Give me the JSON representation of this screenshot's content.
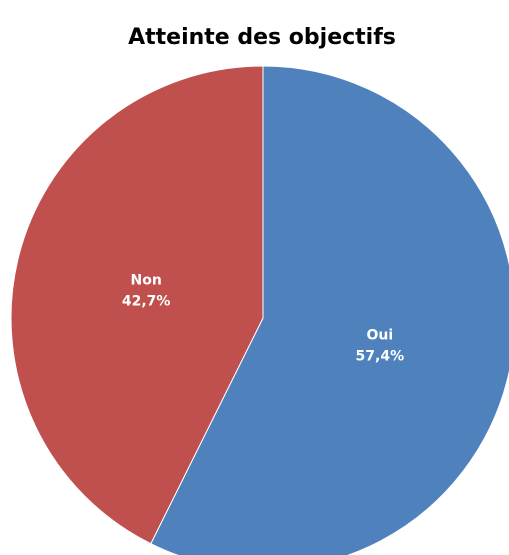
{
  "chart_data": {
    "type": "pie",
    "title": "Atteinte des objectifs",
    "categories": [
      "Oui",
      "Non"
    ],
    "values": [
      57.4,
      42.7
    ],
    "value_labels": [
      "57,4%",
      "42,7%"
    ],
    "colors": [
      "#4f81bd",
      "#c0504d"
    ]
  }
}
